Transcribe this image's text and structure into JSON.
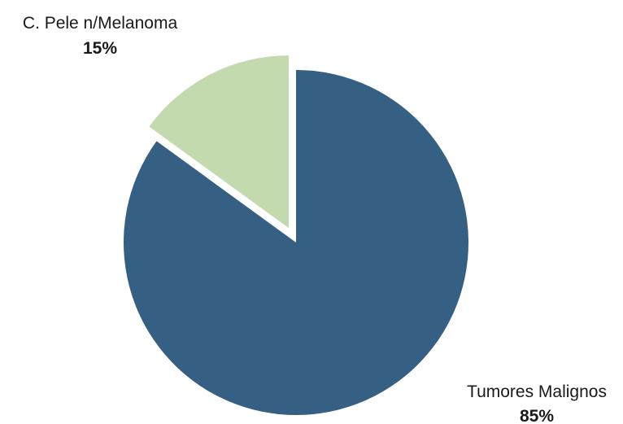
{
  "chart_data": {
    "type": "pie",
    "slices": [
      {
        "label": "Tumores Malignos",
        "value_text": "85%",
        "value": 85,
        "color": "#366083",
        "exploded": false
      },
      {
        "label": "C. Pele n/Melanoma",
        "value_text": "15%",
        "value": 15,
        "color": "#c3d9ae",
        "exploded": true
      }
    ]
  }
}
